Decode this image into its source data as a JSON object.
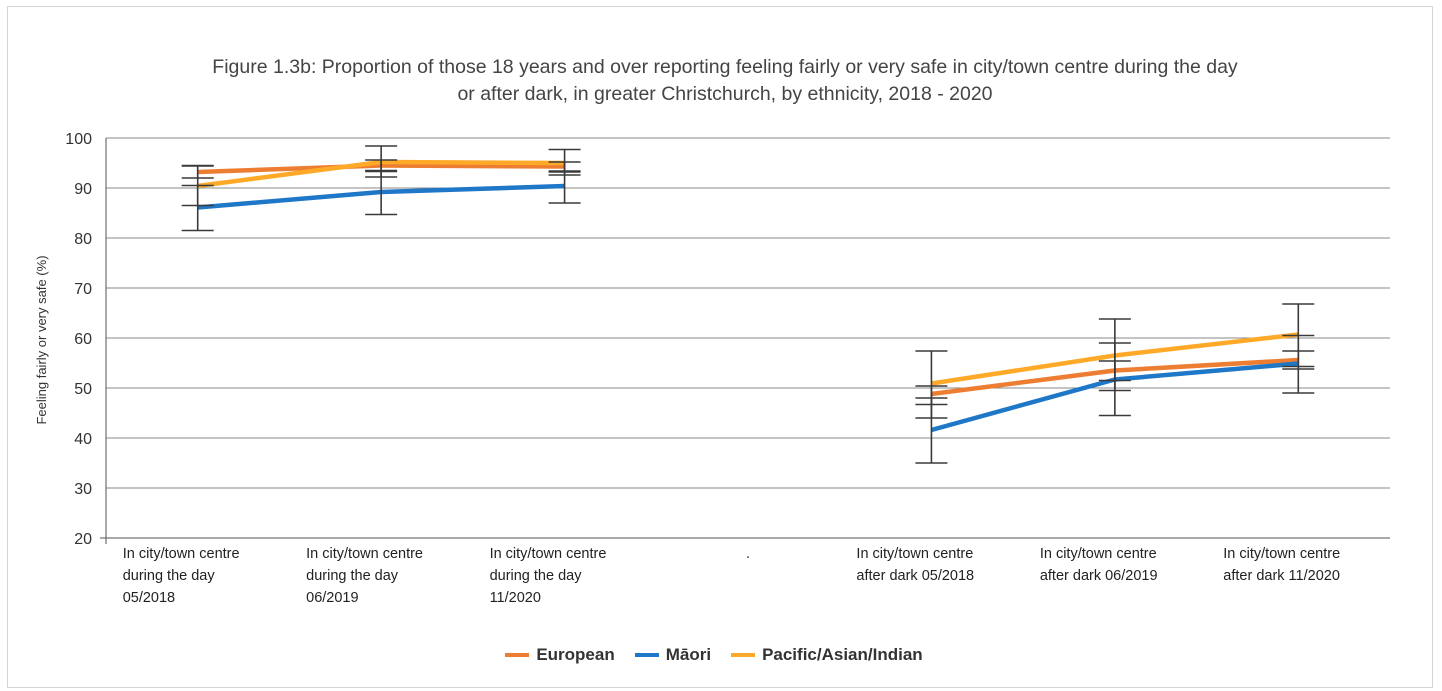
{
  "chart_data": {
    "type": "line",
    "title_lines": [
      "Figure 1.3b: Proportion of those 18 years and over reporting feeling fairly or very safe in city/town centre during the day",
      "or after dark, in greater Christchurch, by ethnicity, 2018 - 2020"
    ],
    "ylabel": "Feeling fairly or very safe (%)",
    "ylim": [
      20,
      100
    ],
    "yticks": [
      "20",
      "30",
      "40",
      "50",
      "60",
      "70",
      "80",
      "90",
      "100"
    ],
    "grid": true,
    "legend_position": "bottom",
    "categories": [
      [
        "In city/town centre",
        "during the day",
        "05/2018"
      ],
      [
        "In city/town centre",
        "during the day",
        "06/2019"
      ],
      [
        "In city/town centre",
        "during the day",
        "11/2020"
      ],
      [
        "."
      ],
      [
        "In city/town centre",
        "after dark 05/2018"
      ],
      [
        "In city/town centre",
        "after dark 06/2019"
      ],
      [
        "In city/town centre",
        "after dark 11/2020"
      ]
    ],
    "series": [
      {
        "name": "European",
        "color": "#ED7D31",
        "values": [
          93.2,
          94.5,
          94.3,
          null,
          48.8,
          53.5,
          55.6
        ],
        "error_low": [
          92.0,
          93.3,
          93.2,
          null,
          46.7,
          51.5,
          53.8
        ],
        "error_high": [
          94.4,
          95.6,
          95.2,
          null,
          50.4,
          55.4,
          57.4
        ]
      },
      {
        "name": "Māori",
        "color": "#1F77C8",
        "values": [
          86.1,
          89.2,
          90.4,
          null,
          41.6,
          51.7,
          54.9
        ],
        "error_low": [
          81.5,
          84.7,
          87.0,
          null,
          35.0,
          44.5,
          49.0
        ],
        "error_high": [
          90.5,
          93.5,
          93.4,
          null,
          48.0,
          59.0,
          60.5
        ]
      },
      {
        "name": "Pacific/Asian/Indian",
        "color": "#FFA928",
        "values": [
          90.4,
          95.2,
          95.0,
          null,
          50.9,
          56.5,
          60.7
        ],
        "error_low": [
          86.5,
          92.2,
          92.6,
          null,
          44.0,
          49.5,
          54.3
        ],
        "error_high": [
          94.5,
          98.4,
          97.7,
          null,
          57.4,
          63.8,
          66.8
        ]
      }
    ]
  }
}
